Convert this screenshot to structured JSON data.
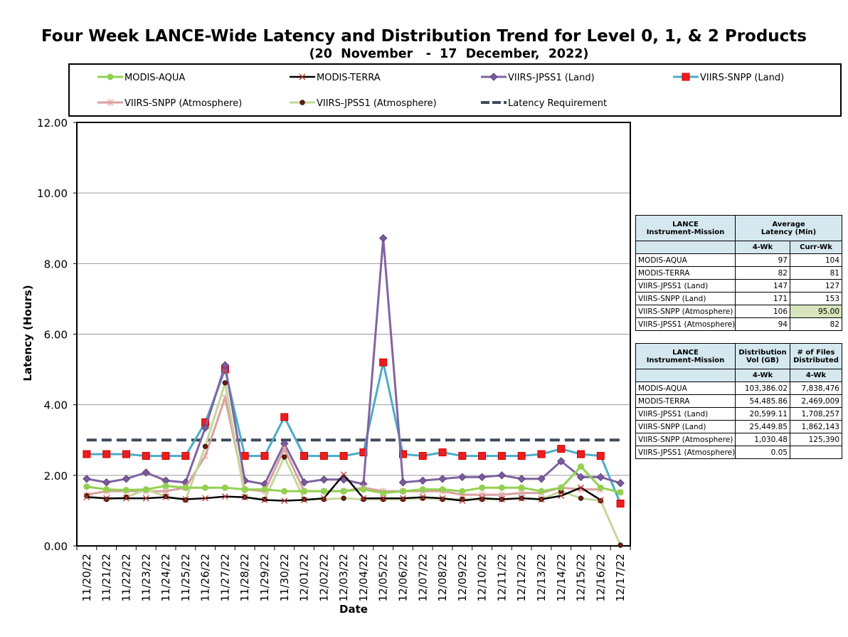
{
  "title": "Four Week LANCE-Wide Latency and Distribution Trend for Level 0, 1, & 2 Products",
  "subtitle": "(20  November   -  17  December,  2022)",
  "chart_data": {
    "type": "line",
    "xlabel": "Date",
    "ylabel": "Latency (Hours)",
    "ylim": [
      0,
      12
    ],
    "yticks": [
      "0.00",
      "2.00",
      "4.00",
      "6.00",
      "8.00",
      "10.00",
      "12.00"
    ],
    "grid": true,
    "legend_position": "top",
    "categories": [
      "11/20/22",
      "11/21/22",
      "11/22/22",
      "11/23/22",
      "11/24/22",
      "11/25/22",
      "11/26/22",
      "11/27/22",
      "11/28/22",
      "11/29/22",
      "11/30/22",
      "12/01/22",
      "12/02/22",
      "12/03/22",
      "12/04/22",
      "12/05/22",
      "12/06/22",
      "12/07/22",
      "12/08/22",
      "12/09/22",
      "12/10/22",
      "12/11/22",
      "12/12/22",
      "12/13/22",
      "12/14/22",
      "12/15/22",
      "12/16/22",
      "12/17/22"
    ],
    "series": [
      {
        "name": "MODIS-AQUA",
        "color": "#92d050",
        "marker": "circle",
        "values": [
          1.68,
          1.6,
          1.58,
          1.6,
          1.7,
          1.65,
          1.65,
          1.65,
          1.6,
          1.6,
          1.55,
          1.55,
          1.55,
          1.55,
          1.6,
          1.5,
          1.55,
          1.6,
          1.6,
          1.55,
          1.65,
          1.65,
          1.65,
          1.55,
          1.65,
          2.25,
          1.65,
          1.52
        ]
      },
      {
        "name": "MODIS-TERRA",
        "color": "#000000",
        "marker": "x",
        "values": [
          1.38,
          1.35,
          1.35,
          1.35,
          1.38,
          1.32,
          1.35,
          1.4,
          1.38,
          1.3,
          1.28,
          1.3,
          1.35,
          2.02,
          1.35,
          1.35,
          1.35,
          1.38,
          1.35,
          1.28,
          1.35,
          1.32,
          1.35,
          1.32,
          1.42,
          1.65,
          1.3,
          null
        ]
      },
      {
        "name": "VIIRS-JPSS1 (Land)",
        "color": "#8064a2",
        "marker": "diamond",
        "values": [
          1.9,
          1.8,
          1.9,
          2.08,
          1.85,
          1.8,
          3.35,
          5.12,
          1.85,
          1.75,
          2.9,
          1.8,
          1.88,
          1.88,
          1.75,
          8.72,
          1.8,
          1.85,
          1.9,
          1.95,
          1.95,
          2.0,
          1.9,
          1.9,
          2.4,
          1.95,
          1.95,
          1.78
        ]
      },
      {
        "name": "VIIRS-SNPP (Land)",
        "color": "#4bacc6",
        "marker": "square",
        "values": [
          2.6,
          2.6,
          2.6,
          2.55,
          2.55,
          2.55,
          3.5,
          5.0,
          2.55,
          2.55,
          3.65,
          2.55,
          2.55,
          2.55,
          2.65,
          5.2,
          2.6,
          2.55,
          2.65,
          2.55,
          2.55,
          2.55,
          2.55,
          2.6,
          2.75,
          2.6,
          2.55,
          1.2
        ]
      },
      {
        "name": "VIIRS-SNPP (Atmosphere)",
        "color": "#d9a09e",
        "marker": "star",
        "values": [
          1.45,
          1.55,
          1.55,
          1.55,
          1.55,
          1.65,
          2.55,
          4.2,
          1.6,
          1.55,
          2.75,
          1.55,
          1.55,
          1.55,
          1.65,
          1.55,
          1.55,
          1.55,
          1.55,
          1.45,
          1.45,
          1.45,
          1.5,
          1.5,
          1.65,
          1.6,
          1.6,
          null
        ]
      },
      {
        "name": "VIIRS-JPSS1 (Atmosphere)",
        "color": "#c4d79b",
        "marker": "dot",
        "values": [
          1.42,
          1.32,
          1.38,
          1.6,
          1.4,
          1.3,
          2.82,
          4.62,
          1.38,
          1.32,
          2.52,
          1.32,
          1.32,
          1.35,
          1.32,
          1.32,
          1.32,
          1.35,
          1.32,
          1.32,
          1.32,
          1.32,
          1.35,
          1.32,
          1.55,
          1.35,
          1.28,
          0.02
        ]
      },
      {
        "name": "Latency Requirement",
        "color": "#2f3b4c",
        "marker": "dash",
        "values": [
          3,
          3,
          3,
          3,
          3,
          3,
          3,
          3,
          3,
          3,
          3,
          3,
          3,
          3,
          3,
          3,
          3,
          3,
          3,
          3,
          3,
          3,
          3,
          3,
          3,
          3,
          3,
          3
        ]
      }
    ]
  },
  "latency_table": {
    "header_col1": [
      "LANCE",
      "Instrument-Mission"
    ],
    "header_avg": [
      "Average",
      "Latency (Min)"
    ],
    "sub_headers": [
      "4-Wk",
      "Curr-Wk"
    ],
    "rows": [
      {
        "label": "MODIS-AQUA",
        "wk4": "97",
        "curr": "104"
      },
      {
        "label": "MODIS-TERRA",
        "wk4": "82",
        "curr": "81"
      },
      {
        "label": "VIIRS-JPSS1 (Land)",
        "wk4": "147",
        "curr": "127"
      },
      {
        "label": "VIIRS-SNPP (Land)",
        "wk4": "171",
        "curr": "153"
      },
      {
        "label": "VIIRS-SNPP (Atmosphere)",
        "wk4": "106",
        "curr": "95.00"
      },
      {
        "label": "VIIRS-JPSS1 (Atmosphere)",
        "wk4": "94",
        "curr": "82"
      }
    ]
  },
  "dist_table": {
    "header_col1": [
      "LANCE",
      "Instrument-Mission"
    ],
    "header_vol": [
      "Distribution",
      "Vol (GB)"
    ],
    "header_files": [
      "# of Files",
      "Distributed"
    ],
    "sub_headers": [
      "4-Wk",
      "4-Wk"
    ],
    "rows": [
      {
        "label": "MODIS-AQUA",
        "vol": "103,386.02",
        "files": "7,838,476"
      },
      {
        "label": "MODIS-TERRA",
        "vol": "54,485.86",
        "files": "2,469,009"
      },
      {
        "label": "VIIRS-JPSS1 (Land)",
        "vol": "20,599.11",
        "files": "1,708,257"
      },
      {
        "label": "VIIRS-SNPP (Land)",
        "vol": "25,449.85",
        "files": "1,862,143"
      },
      {
        "label": "VIIRS-SNPP (Atmosphere)",
        "vol": "1,030.48",
        "files": "125,390"
      },
      {
        "label": "VIIRS-JPSS1 (Atmosphere)",
        "vol": "0.05",
        "files": ""
      }
    ]
  }
}
